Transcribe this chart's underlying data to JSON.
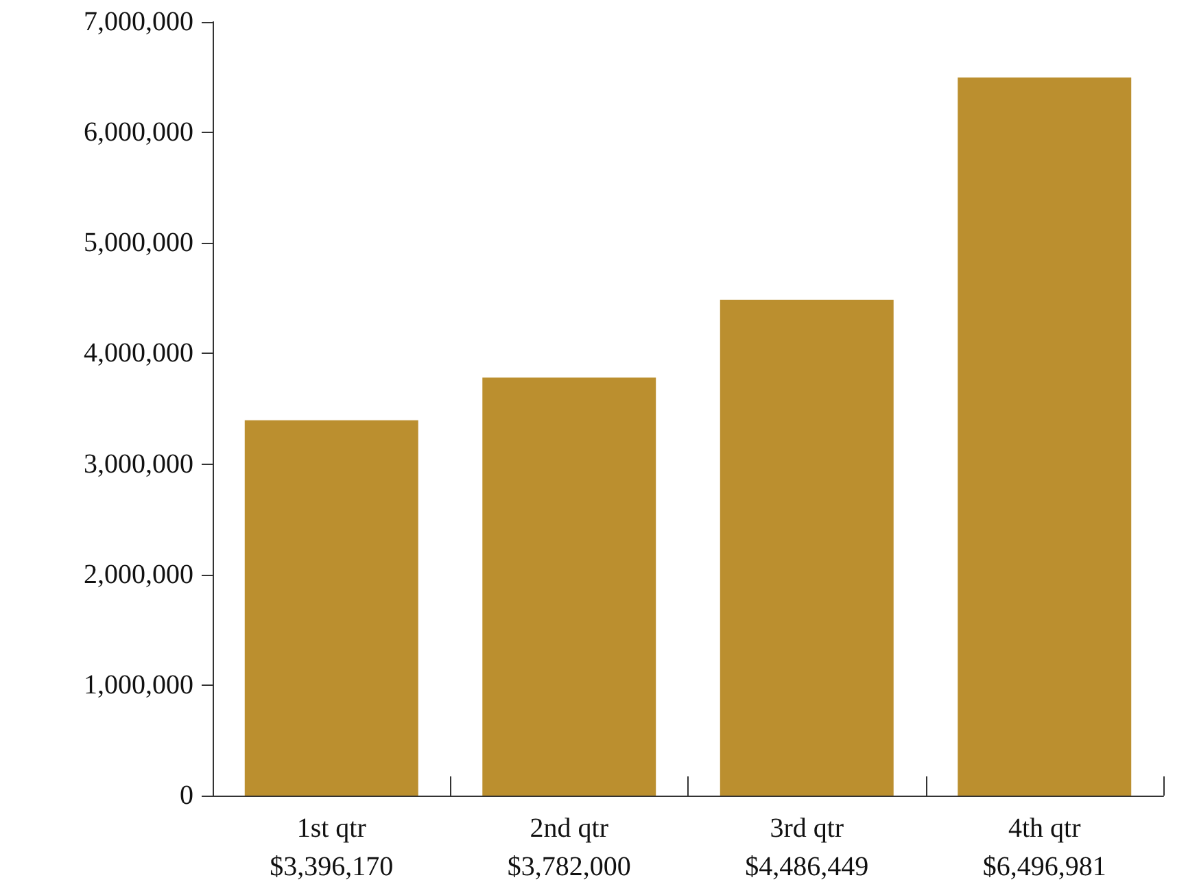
{
  "chart_data": {
    "type": "bar",
    "categories": [
      "1st qtr",
      "2nd qtr",
      "3rd qtr",
      "4th qtr"
    ],
    "values": [
      3396170,
      3782000,
      4486449,
      6496981
    ],
    "value_labels": [
      "$3,396,170",
      "$3,782,000",
      "$4,486,449",
      "$6,496,981"
    ],
    "color": "#bb8f2f",
    "ylim": [
      0,
      7000000
    ],
    "yticks": [
      0,
      {
        "value": 1000000,
        "label": "1,000,000"
      },
      {
        "value": 2000000,
        "label": "2,000,000"
      },
      {
        "value": 3000000,
        "label": "3,000,000"
      },
      {
        "value": 4000000,
        "label": "4,000,000"
      },
      {
        "value": 5000000,
        "label": "5,000,000"
      },
      {
        "value": 6000000,
        "label": "6,000,000"
      },
      {
        "value": 7000000,
        "label": "7,000,000"
      }
    ]
  }
}
